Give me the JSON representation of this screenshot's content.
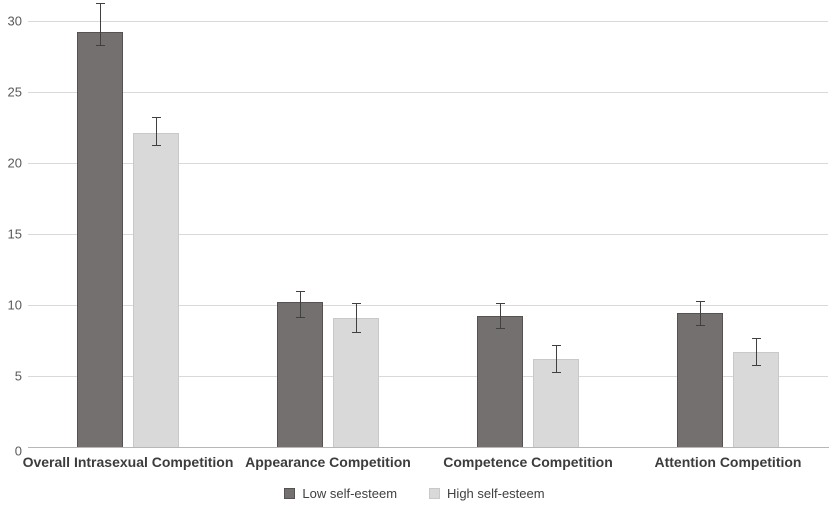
{
  "chart_data": {
    "type": "bar",
    "title": "",
    "xlabel": "",
    "ylabel": "",
    "categories": [
      "Overall Intrasexual Competition",
      "Appearance Competition",
      "Competence Competition",
      "Attention Competition"
    ],
    "series": [
      {
        "name": "Low self-esteem",
        "color": "#757070",
        "border_color": "#575252",
        "values": [
          29.2,
          10.2,
          9.2,
          9.4
        ],
        "error_low": [
          28.2,
          9.1,
          8.3,
          8.5
        ],
        "error_high": [
          31.2,
          11.0,
          10.1,
          10.3
        ]
      },
      {
        "name": "High self-esteem",
        "color": "#d9d9d9",
        "border_color": "#c9c9c9",
        "values": [
          22.1,
          9.1,
          6.2,
          6.7
        ],
        "error_low": [
          21.2,
          8.0,
          5.2,
          5.7
        ],
        "error_high": [
          23.2,
          10.1,
          7.2,
          7.7
        ]
      }
    ],
    "ylim": [
      0,
      30
    ],
    "yticks": [
      0,
      5,
      10,
      15,
      20,
      25,
      30
    ],
    "grid": true,
    "legend_position": "bottom"
  },
  "colors": {
    "background": "#ffffff",
    "gridline": "#d9d9d9",
    "axis_line": "#b7b7b7",
    "tick_label": "#595959",
    "category_label": "#3c3c3c",
    "error_bar": "#404040",
    "legend_label": "#404040"
  }
}
